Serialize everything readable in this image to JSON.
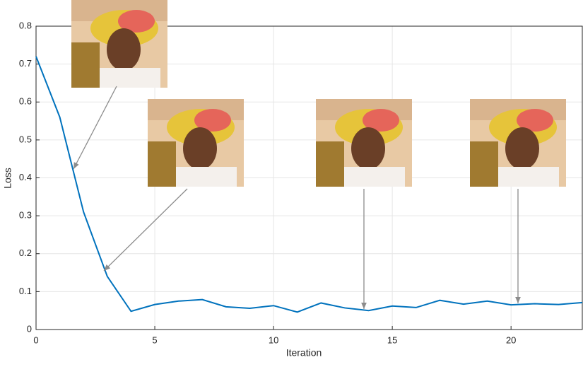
{
  "chart_data": {
    "type": "line",
    "x": [
      0,
      1,
      2,
      3,
      4,
      5,
      6,
      7,
      8,
      9,
      10,
      11,
      12,
      13,
      14,
      15,
      16,
      17,
      18,
      19,
      20,
      21,
      22,
      23
    ],
    "series": [
      {
        "color": "#0072bd",
        "values": [
          0.72,
          0.56,
          0.31,
          0.14,
          0.048,
          0.066,
          0.075,
          0.079,
          0.06,
          0.056,
          0.063,
          0.046,
          0.07,
          0.057,
          0.05,
          0.062,
          0.058,
          0.077,
          0.067,
          0.075,
          0.065,
          0.068,
          0.066,
          0.071
        ]
      }
    ],
    "xlabel": "Iteration",
    "ylabel": "Loss",
    "xlim": [
      0,
      23
    ],
    "ylim": [
      0,
      0.8
    ],
    "xticks": [
      0,
      5,
      10,
      15,
      20
    ],
    "yticks": [
      0,
      0.1,
      0.2,
      0.3,
      0.4,
      0.5,
      0.6,
      0.7,
      0.8
    ],
    "grid": true
  }
}
